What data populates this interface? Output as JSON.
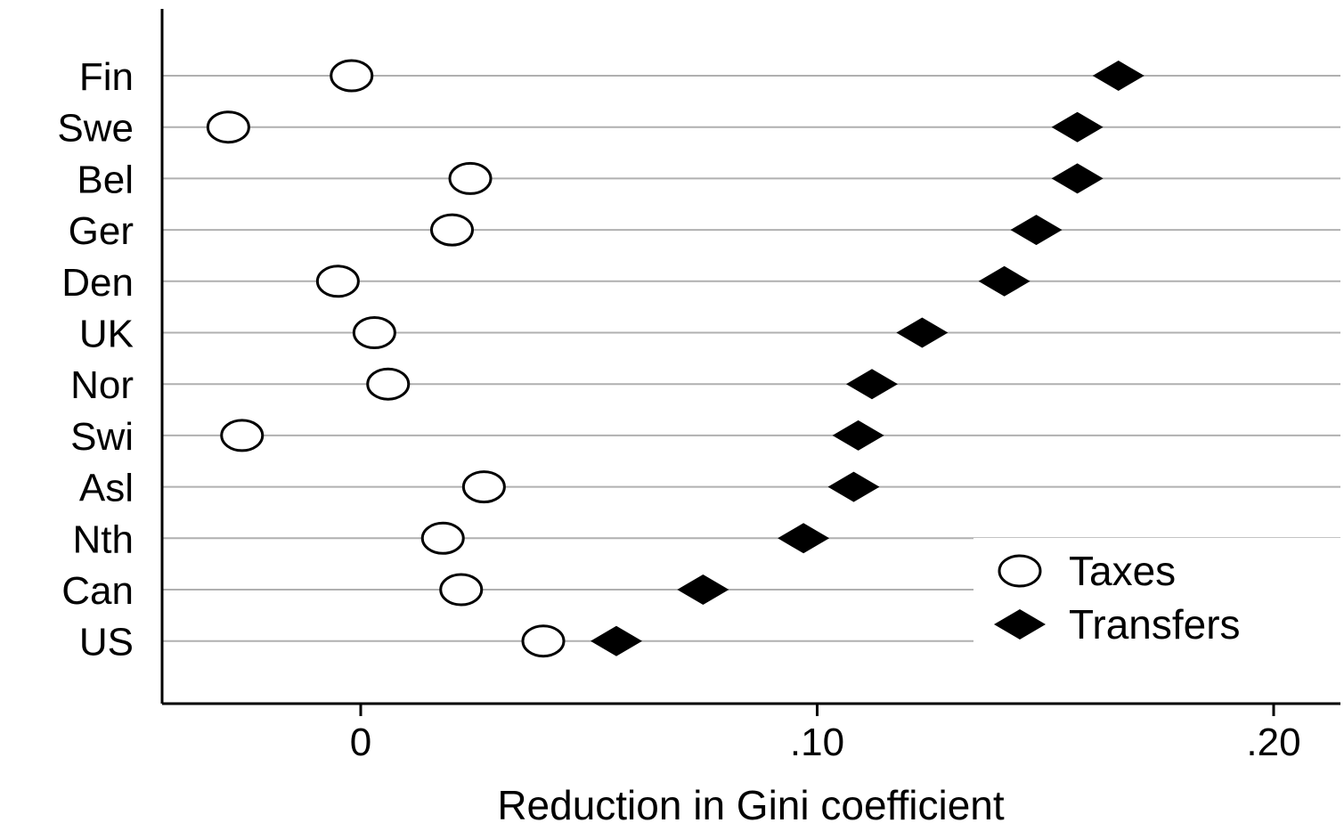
{
  "chart_data": {
    "type": "scatter",
    "orientation": "horizontal-dot-plot",
    "title": "",
    "xlabel": "Reduction in Gini coefficient",
    "ylabel": "",
    "xlim": [
      -0.044,
      0.208
    ],
    "xticks": [
      {
        "value": 0,
        "label": "0"
      },
      {
        "value": 0.1,
        "label": ".10"
      },
      {
        "value": 0.2,
        "label": ".20"
      }
    ],
    "categories": [
      "Fin",
      "Swe",
      "Bel",
      "Ger",
      "Den",
      "UK",
      "Nor",
      "Swi",
      "Asl",
      "Nth",
      "Can",
      "US"
    ],
    "series": [
      {
        "name": "Taxes",
        "marker": "hollow-circle",
        "color": "#000000",
        "values": [
          -0.002,
          -0.029,
          0.024,
          0.02,
          -0.005,
          0.003,
          0.006,
          -0.026,
          0.027,
          0.018,
          0.022,
          0.04
        ]
      },
      {
        "name": "Transfers",
        "marker": "filled-diamond",
        "color": "#000000",
        "values": [
          0.166,
          0.157,
          0.157,
          0.148,
          0.141,
          0.123,
          0.112,
          0.109,
          0.108,
          0.097,
          0.075,
          0.056
        ]
      }
    ],
    "grid": "horizontal lines per category",
    "legend_position": "bottom-right"
  }
}
